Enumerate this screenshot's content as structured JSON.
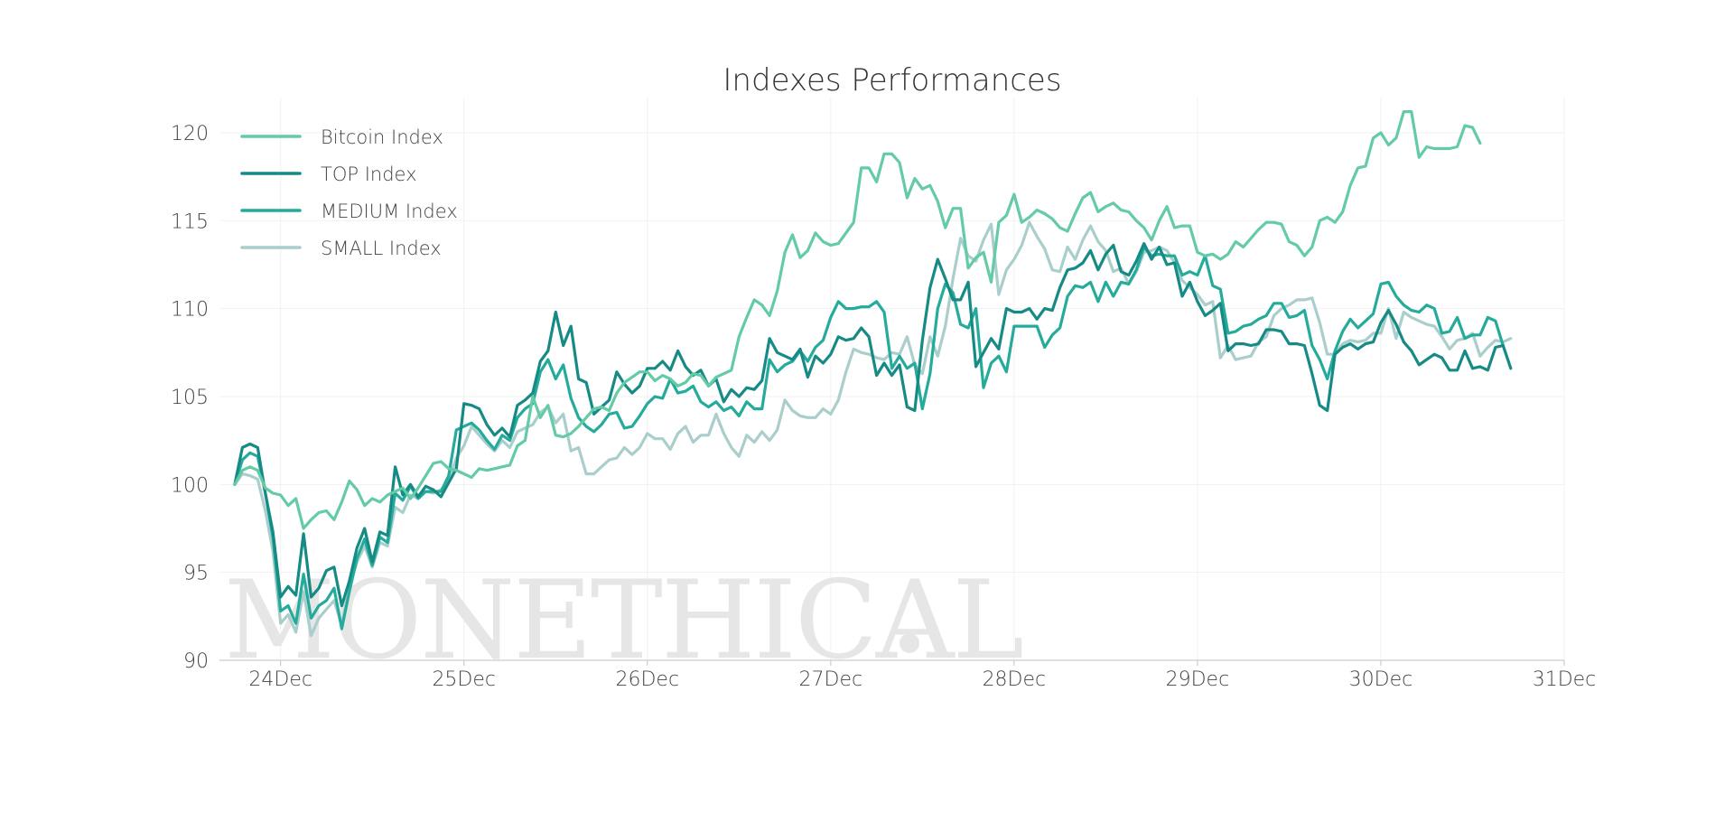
{
  "chart_data": {
    "type": "line",
    "title": "Indexes Performances",
    "xlabel": "",
    "ylabel": "",
    "ylim": [
      90,
      122
    ],
    "xlim": [
      "2017-12-23T16:00",
      "2017-12-31T00:00"
    ],
    "y_ticks": [
      "90",
      "95",
      "100",
      "105",
      "110",
      "115",
      "120"
    ],
    "x_ticks": [
      "24Dec",
      "25Dec",
      "26Dec",
      "27Dec",
      "28Dec",
      "29Dec",
      "30Dec",
      "31Dec"
    ],
    "grid": true,
    "legend_position": "top-left",
    "watermark": "MONETHICAL",
    "sampling": "hourly",
    "x_start": "2017-12-23T18:00",
    "x_step_hours": 1,
    "series": [
      {
        "name": "Bitcoin Index",
        "color": "#63CBA6",
        "values": [
          100,
          100.8,
          101,
          100.8,
          99.8,
          99.5,
          99.4,
          98.8,
          99.2,
          97.5,
          98,
          98.4,
          98.5,
          98,
          99,
          100.2,
          99.7,
          98.8,
          99.2,
          99,
          99.4,
          99.6,
          99.8,
          99.2,
          99.8,
          100.5,
          101.2,
          101.3,
          100.9,
          100.8,
          100.6,
          100.4,
          100.9,
          100.8,
          100.9,
          101,
          101.1,
          102.2,
          102.5,
          105,
          103.8,
          104.5,
          102.8,
          102.7,
          102.9,
          103.3,
          103.8,
          104.3,
          104.4,
          104.2,
          105.2,
          105.8,
          106.1,
          106.4,
          106.4,
          105.9,
          106.2,
          106,
          105.6,
          105.8,
          106.3,
          106.2,
          105.6,
          106.1,
          106.3,
          106.5,
          108.4,
          109.5,
          110.5,
          110.2,
          109.6,
          111,
          113.2,
          114.2,
          112.9,
          113.3,
          114.3,
          113.8,
          113.6,
          113.7,
          114.3,
          114.9,
          118,
          118,
          117.2,
          118.8,
          118.8,
          118.3,
          116.3,
          117.4,
          116.8,
          117,
          116.1,
          114.6,
          115.7,
          115.7,
          112.3,
          112.9,
          113.2,
          111.5,
          114.9,
          115.3,
          116.5,
          114.9,
          115.2,
          115.6,
          115.4,
          115.1,
          114.6,
          114.4,
          115.4,
          116.3,
          116.6,
          115.5,
          115.8,
          116,
          115.6,
          115.5,
          115,
          114.6,
          113.9,
          115,
          115.8,
          114.6,
          114.7,
          114.7,
          113.2,
          113,
          113.1,
          112.8,
          113.1,
          113.8,
          113.5,
          114,
          114.5,
          114.9,
          114.9,
          114.8,
          113.8,
          113.6,
          113,
          113.5,
          115,
          115.2,
          114.9,
          115.5,
          117,
          118,
          118.1,
          119.7,
          120,
          119.3,
          119.7,
          121.2,
          121.2,
          118.6,
          119.2,
          119.1,
          119.1,
          119.1,
          119.2,
          120.4,
          120.3,
          119.4
        ]
      },
      {
        "name": "TOP Index",
        "color": "#168A85",
        "values": [
          100,
          102.1,
          102.3,
          102.1,
          99.5,
          97.3,
          93.6,
          94.2,
          93.7,
          97.2,
          93.6,
          94.1,
          95.1,
          95.3,
          93.1,
          94.5,
          96.4,
          97.5,
          95.6,
          97.3,
          97.1,
          101,
          99.4,
          100,
          99.3,
          99.9,
          99.7,
          99.3,
          100.1,
          100.9,
          104.6,
          104.5,
          104.3,
          103.4,
          102.8,
          103.2,
          102.7,
          104.5,
          104.8,
          105.2,
          107,
          107.6,
          109.8,
          107.9,
          109,
          106,
          105.8,
          104,
          104.4,
          104.8,
          106.4,
          105.7,
          105.2,
          105.6,
          106.6,
          106.6,
          107,
          106.5,
          107.6,
          106.7,
          106.2,
          106.5,
          105.6,
          106,
          104.7,
          105.4,
          105,
          105.5,
          105.4,
          105.9,
          108.3,
          107.5,
          107.3,
          107.1,
          107.7,
          106.1,
          107.3,
          106.9,
          107.4,
          108.4,
          108.2,
          108.3,
          108.9,
          108.4,
          106.2,
          106.9,
          106.2,
          106.8,
          104.4,
          104.2,
          108.2,
          111.2,
          112.8,
          111.7,
          110.5,
          110.5,
          111.5,
          106.7,
          107.5,
          108.3,
          107.7,
          110,
          109.8,
          109.8,
          110,
          109.4,
          110,
          109.9,
          111.2,
          112.2,
          112.3,
          112.6,
          113.3,
          112.2,
          113.1,
          113.6,
          112.1,
          111.9,
          112.7,
          113.7,
          112.8,
          113.5,
          112.5,
          112.6,
          110.7,
          111.5,
          110.4,
          109.6,
          109.9,
          110.3,
          107.6,
          108,
          108,
          107.9,
          108,
          108.8,
          108.8,
          108.7,
          108,
          108,
          107.9,
          106.3,
          104.5,
          104.2,
          107.4,
          107.8,
          108,
          107.7,
          108,
          108.1,
          109.2,
          109.9,
          109.1,
          108.1,
          107.6,
          106.8,
          107.1,
          107.4,
          107.2,
          106.5,
          106.5,
          107.6,
          106.6,
          106.7,
          106.5,
          107.8,
          107.9,
          106.6
        ]
      },
      {
        "name": "MEDIUM Index",
        "color": "#24AB9B",
        "values": [
          100,
          101.4,
          101.8,
          101.6,
          99.5,
          97,
          92.8,
          93.1,
          92.1,
          94.9,
          92.4,
          93.1,
          93.4,
          94.1,
          91.8,
          93.9,
          95.8,
          96.9,
          95.4,
          97,
          96.7,
          99.5,
          99.1,
          99.9,
          99.2,
          99.6,
          99.6,
          99.6,
          100.5,
          103.1,
          103.3,
          103.5,
          103.1,
          102.5,
          102,
          102.8,
          102.5,
          103.8,
          104.3,
          104.6,
          106.4,
          107.1,
          106,
          106.8,
          104.9,
          103.8,
          103.3,
          103,
          103.4,
          104,
          104.1,
          103.2,
          103.3,
          103.9,
          104.6,
          105,
          104.9,
          106,
          105.2,
          105.3,
          105.6,
          104.7,
          104.4,
          104.7,
          104.2,
          104.4,
          103.9,
          104.7,
          104.3,
          104.3,
          107.1,
          106.4,
          106.8,
          107,
          107.6,
          107,
          107.8,
          108.2,
          109.5,
          110.4,
          110,
          110,
          110.1,
          110.1,
          110.4,
          109.8,
          106.6,
          107.3,
          106.6,
          106.9,
          104.3,
          106.3,
          110,
          111.4,
          110.9,
          109.1,
          108.9,
          110,
          105.5,
          106.9,
          107.3,
          106.4,
          109,
          109,
          109,
          109,
          107.8,
          108.5,
          108.9,
          110.7,
          111.3,
          111.2,
          111.5,
          110.4,
          111.5,
          110.7,
          111.5,
          111.4,
          112.2,
          113.5,
          113,
          113.1,
          113,
          113,
          111.9,
          112.1,
          111.9,
          113,
          111.3,
          111.1,
          108.6,
          108.7,
          109,
          109.1,
          109.4,
          109.6,
          110.3,
          110.3,
          109.5,
          109.6,
          109.9,
          107.9,
          107.1,
          106,
          107.6,
          108.7,
          109.4,
          108.9,
          109.3,
          109.7,
          111.4,
          111.5,
          110.7,
          110.2,
          109.9,
          109.8,
          110.2,
          110,
          108.6,
          108.7,
          109.5,
          108.3,
          108.5,
          108.5,
          109.5,
          109.3,
          107.9
        ]
      },
      {
        "name": "SMALL Index",
        "color": "#A9CECB",
        "values": [
          100,
          100.6,
          100.5,
          100.3,
          98.5,
          96.2,
          92.1,
          92.6,
          91.6,
          93.9,
          91.4,
          92.4,
          92.9,
          93.4,
          92,
          94.2,
          95.6,
          96.5,
          95.3,
          96.7,
          96.5,
          98.7,
          98.4,
          99.4,
          99.2,
          99.6,
          99.5,
          99.7,
          100.2,
          101.5,
          102.2,
          103.3,
          102.8,
          102.3,
          101.9,
          102.5,
          102.1,
          103,
          103.2,
          103.4,
          104.1,
          104.4,
          103.5,
          104,
          101.9,
          102.1,
          100.6,
          100.6,
          101,
          101.4,
          101.5,
          102.1,
          101.7,
          102.1,
          102.9,
          102.6,
          102.6,
          102,
          102.9,
          103.3,
          102.4,
          102.8,
          102.8,
          104,
          102.9,
          102.1,
          101.6,
          102.8,
          102.4,
          103,
          102.5,
          103.1,
          104.8,
          104.2,
          103.9,
          103.8,
          103.8,
          104.3,
          104,
          104.8,
          106.4,
          107.7,
          107.5,
          107.4,
          107.2,
          107.1,
          107.5,
          107.4,
          108.4,
          106.8,
          106.3,
          108.4,
          107.3,
          109,
          111.7,
          114,
          113,
          112.7,
          113.9,
          114.8,
          110.8,
          112.2,
          112.8,
          113.6,
          114.9,
          114.1,
          113.4,
          112.2,
          112.1,
          113.5,
          112.8,
          113.9,
          114.7,
          113.8,
          113.3,
          112.1,
          112.3,
          111.4,
          112.1,
          113.2,
          113.3,
          113.5,
          113.3,
          112.6,
          111.6,
          111.2,
          110.8,
          110.2,
          110.4,
          107.2,
          107.9,
          107.1,
          107.2,
          107.3,
          108.1,
          108.4,
          109.6,
          110,
          110.2,
          110.5,
          110.5,
          110.6,
          109.2,
          107.4,
          107.4,
          108,
          108.2,
          108.1,
          108.2,
          108.6,
          108.6,
          110,
          108.3,
          109.8,
          109.5,
          109.3,
          109.1,
          109,
          108.4,
          107.7,
          108.2,
          108.3,
          108.6,
          107.3,
          107.8,
          108.2,
          108.1,
          108.3
        ]
      }
    ]
  }
}
